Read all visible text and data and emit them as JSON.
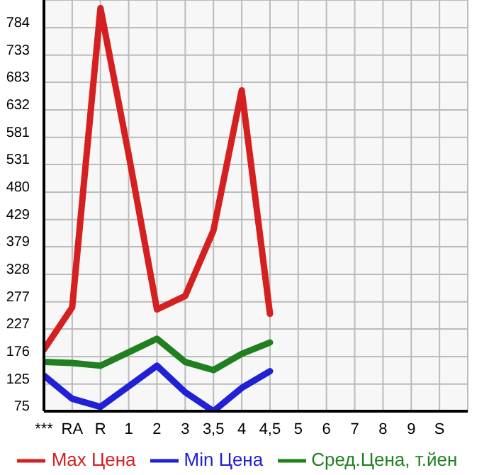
{
  "chart_data": {
    "type": "line",
    "categories": [
      "***",
      "RA",
      "R",
      "1",
      "2",
      "3",
      "3,5",
      "4",
      "4,5",
      "5",
      "6",
      "7",
      "8",
      "9",
      "S"
    ],
    "series": [
      {
        "name": "Max Цена",
        "color": "#d42020",
        "values": [
          189,
          267,
          820,
          549,
          263,
          288,
          409,
          668,
          255,
          null,
          null,
          null,
          null,
          null,
          null
        ]
      },
      {
        "name": "Min Цена",
        "color": "#2020d4",
        "values": [
          141,
          98,
          83,
          121,
          159,
          110,
          75,
          118,
          149,
          null,
          null,
          null,
          null,
          null,
          null
        ]
      },
      {
        "name": "Сред.Цена, т.йен",
        "color": "#208020",
        "values": [
          166,
          164,
          159,
          184,
          209,
          166,
          151,
          181,
          202,
          null,
          null,
          null,
          null,
          null,
          null
        ]
      }
    ],
    "ylim": [
      75,
      835
    ],
    "yticks": [
      75,
      125,
      176,
      227,
      277,
      328,
      379,
      429,
      480,
      531,
      581,
      632,
      683,
      733,
      784
    ],
    "grid": true,
    "legend": "bottom",
    "marker": "none",
    "line_style": "solid"
  }
}
